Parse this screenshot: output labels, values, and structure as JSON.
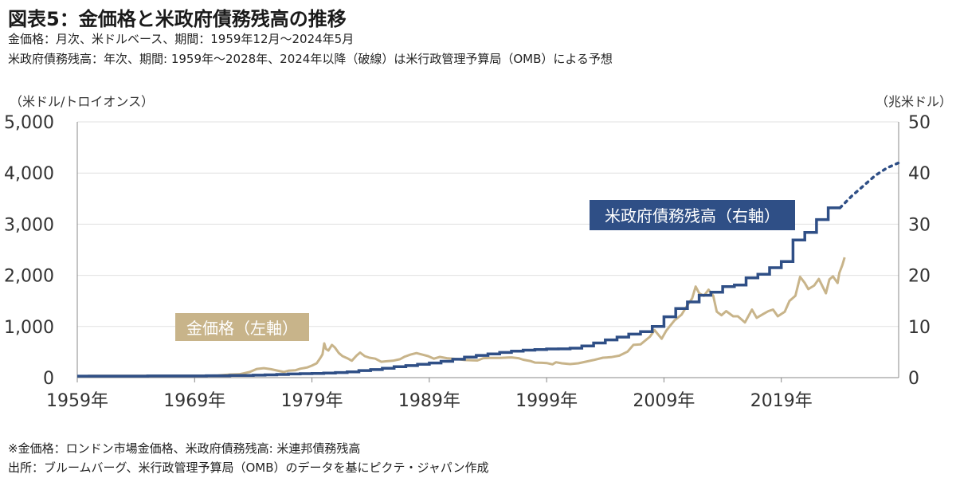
{
  "title": "図表5：金価格と米政府債務残高の推移",
  "subtitle_lines": [
    "金価格：月次、米ドルベース、期間：1959年12月～2024年5月",
    "米政府債務残高：年次、期間: 1959年～2028年、2024年以降（破線）は米行政管理予算局（OMB）による予想"
  ],
  "footnote": "※金価格：ロンドン市場金価格、米政府債務残高: 米連邦債務残高",
  "source": "出所：ブルームバーグ、米行政管理予算局（OMB）のデータを基にピクテ・ジャパン作成",
  "colors": {
    "gold": "#c8b48a",
    "debt": "#2f4f86",
    "grid": "#e0e0e0",
    "axis": "#888888"
  },
  "chart_data": {
    "type": "line",
    "x_ticks": [
      "1959年",
      "1969年",
      "1979年",
      "1989年",
      "1999年",
      "2009年",
      "2019年"
    ],
    "x_tick_years": [
      1959,
      1969,
      1979,
      1989,
      1999,
      2009,
      2019
    ],
    "xlim": [
      1959,
      2029
    ],
    "left_axis": {
      "unit_label": "（米ドル/トロイオンス）",
      "ticks": [
        "0",
        "1,000",
        "2,000",
        "3,000",
        "4,000",
        "5,000"
      ],
      "ylim": [
        0,
        5000
      ]
    },
    "right_axis": {
      "unit_label": "（兆米ドル）",
      "ticks": [
        "0",
        "10",
        "20",
        "30",
        "40",
        "50"
      ],
      "ylim": [
        0,
        50
      ]
    },
    "series": [
      {
        "name": "金価格",
        "label": "金価格（左軸）",
        "axis": "left",
        "points": [
          [
            1959.9,
            35
          ],
          [
            1965,
            35
          ],
          [
            1968,
            38
          ],
          [
            1970,
            37
          ],
          [
            1971,
            42
          ],
          [
            1972,
            60
          ],
          [
            1972.8,
            65
          ],
          [
            1973.3,
            90
          ],
          [
            1973.7,
            110
          ],
          [
            1974.3,
            170
          ],
          [
            1974.9,
            185
          ],
          [
            1975.5,
            165
          ],
          [
            1976.0,
            140
          ],
          [
            1976.6,
            110
          ],
          [
            1977.0,
            135
          ],
          [
            1977.6,
            145
          ],
          [
            1978.0,
            175
          ],
          [
            1978.6,
            200
          ],
          [
            1979.0,
            235
          ],
          [
            1979.4,
            280
          ],
          [
            1979.7,
            380
          ],
          [
            1979.9,
            455
          ],
          [
            1980.05,
            670
          ],
          [
            1980.2,
            560
          ],
          [
            1980.4,
            530
          ],
          [
            1980.7,
            640
          ],
          [
            1980.95,
            590
          ],
          [
            1981.3,
            480
          ],
          [
            1981.6,
            420
          ],
          [
            1982.0,
            380
          ],
          [
            1982.4,
            330
          ],
          [
            1982.8,
            430
          ],
          [
            1983.1,
            490
          ],
          [
            1983.5,
            420
          ],
          [
            1983.9,
            390
          ],
          [
            1984.4,
            370
          ],
          [
            1984.9,
            310
          ],
          [
            1985.3,
            320
          ],
          [
            1985.9,
            330
          ],
          [
            1986.5,
            360
          ],
          [
            1986.9,
            410
          ],
          [
            1987.4,
            450
          ],
          [
            1987.9,
            480
          ],
          [
            1988.4,
            450
          ],
          [
            1988.9,
            420
          ],
          [
            1989.4,
            370
          ],
          [
            1989.9,
            405
          ],
          [
            1990.5,
            380
          ],
          [
            1991.0,
            370
          ],
          [
            1991.5,
            360
          ],
          [
            1992.0,
            345
          ],
          [
            1992.6,
            340
          ],
          [
            1993.1,
            335
          ],
          [
            1993.6,
            380
          ],
          [
            1994.2,
            385
          ],
          [
            1995.0,
            385
          ],
          [
            1996.0,
            395
          ],
          [
            1996.6,
            380
          ],
          [
            1997.0,
            350
          ],
          [
            1997.6,
            325
          ],
          [
            1998.0,
            295
          ],
          [
            1998.6,
            290
          ],
          [
            1999.0,
            285
          ],
          [
            1999.5,
            260
          ],
          [
            1999.8,
            300
          ],
          [
            2000.3,
            280
          ],
          [
            2001.0,
            265
          ],
          [
            2001.7,
            280
          ],
          [
            2002.3,
            310
          ],
          [
            2003.0,
            345
          ],
          [
            2003.8,
            390
          ],
          [
            2004.5,
            400
          ],
          [
            2005.2,
            430
          ],
          [
            2005.9,
            510
          ],
          [
            2006.4,
            640
          ],
          [
            2007.0,
            650
          ],
          [
            2007.8,
            800
          ],
          [
            2008.2,
            930
          ],
          [
            2008.8,
            760
          ],
          [
            2009.2,
            920
          ],
          [
            2009.9,
            1120
          ],
          [
            2010.5,
            1230
          ],
          [
            2010.9,
            1380
          ],
          [
            2011.4,
            1550
          ],
          [
            2011.7,
            1780
          ],
          [
            2012.0,
            1650
          ],
          [
            2012.4,
            1600
          ],
          [
            2012.8,
            1720
          ],
          [
            2013.2,
            1600
          ],
          [
            2013.5,
            1290
          ],
          [
            2013.9,
            1220
          ],
          [
            2014.3,
            1300
          ],
          [
            2014.9,
            1200
          ],
          [
            2015.3,
            1200
          ],
          [
            2015.9,
            1080
          ],
          [
            2016.5,
            1330
          ],
          [
            2016.9,
            1170
          ],
          [
            2017.5,
            1250
          ],
          [
            2017.9,
            1300
          ],
          [
            2018.3,
            1330
          ],
          [
            2018.7,
            1200
          ],
          [
            2019.3,
            1290
          ],
          [
            2019.7,
            1500
          ],
          [
            2020.2,
            1600
          ],
          [
            2020.6,
            1970
          ],
          [
            2021.0,
            1850
          ],
          [
            2021.3,
            1730
          ],
          [
            2021.8,
            1800
          ],
          [
            2022.2,
            1930
          ],
          [
            2022.8,
            1650
          ],
          [
            2023.1,
            1920
          ],
          [
            2023.4,
            1980
          ],
          [
            2023.8,
            1850
          ],
          [
            2023.95,
            2050
          ],
          [
            2024.2,
            2200
          ],
          [
            2024.4,
            2350
          ]
        ]
      },
      {
        "name": "米政府債務残高",
        "label": "米政府債務残高（右軸）",
        "axis": "right",
        "steps": [
          [
            1959,
            0.29
          ],
          [
            1965,
            0.32
          ],
          [
            1970,
            0.38
          ],
          [
            1972,
            0.43
          ],
          [
            1974,
            0.48
          ],
          [
            1975,
            0.54
          ],
          [
            1976,
            0.63
          ],
          [
            1977,
            0.71
          ],
          [
            1978,
            0.78
          ],
          [
            1979,
            0.83
          ],
          [
            1980,
            0.91
          ],
          [
            1981,
            1.0
          ],
          [
            1982,
            1.14
          ],
          [
            1983,
            1.38
          ],
          [
            1984,
            1.57
          ],
          [
            1985,
            1.82
          ],
          [
            1986,
            2.13
          ],
          [
            1987,
            2.35
          ],
          [
            1988,
            2.6
          ],
          [
            1989,
            2.86
          ],
          [
            1990,
            3.2
          ],
          [
            1991,
            3.6
          ],
          [
            1992,
            4.0
          ],
          [
            1993,
            4.35
          ],
          [
            1994,
            4.64
          ],
          [
            1995,
            4.92
          ],
          [
            1996,
            5.18
          ],
          [
            1997,
            5.37
          ],
          [
            1998,
            5.48
          ],
          [
            1999,
            5.6
          ],
          [
            2000,
            5.63
          ],
          [
            2001,
            5.77
          ],
          [
            2002,
            6.2
          ],
          [
            2003,
            6.78
          ],
          [
            2004,
            7.38
          ],
          [
            2005,
            7.93
          ],
          [
            2006,
            8.5
          ],
          [
            2007,
            9.0
          ],
          [
            2008,
            10.0
          ],
          [
            2009,
            11.9
          ],
          [
            2010,
            13.5
          ],
          [
            2011,
            14.8
          ],
          [
            2012,
            16.1
          ],
          [
            2013,
            16.7
          ],
          [
            2014,
            17.8
          ],
          [
            2015,
            18.1
          ],
          [
            2016,
            19.5
          ],
          [
            2017,
            20.2
          ],
          [
            2018,
            21.5
          ],
          [
            2019,
            22.7
          ],
          [
            2020,
            26.9
          ],
          [
            2021,
            28.4
          ],
          [
            2022,
            30.9
          ],
          [
            2023,
            33.2
          ]
        ],
        "step_end_year": 2024,
        "forecast": [
          [
            2024,
            33.2
          ],
          [
            2025,
            35.5
          ],
          [
            2026,
            37.5
          ],
          [
            2027,
            39.5
          ],
          [
            2028,
            41.0
          ],
          [
            2029,
            42.0
          ]
        ]
      }
    ]
  }
}
